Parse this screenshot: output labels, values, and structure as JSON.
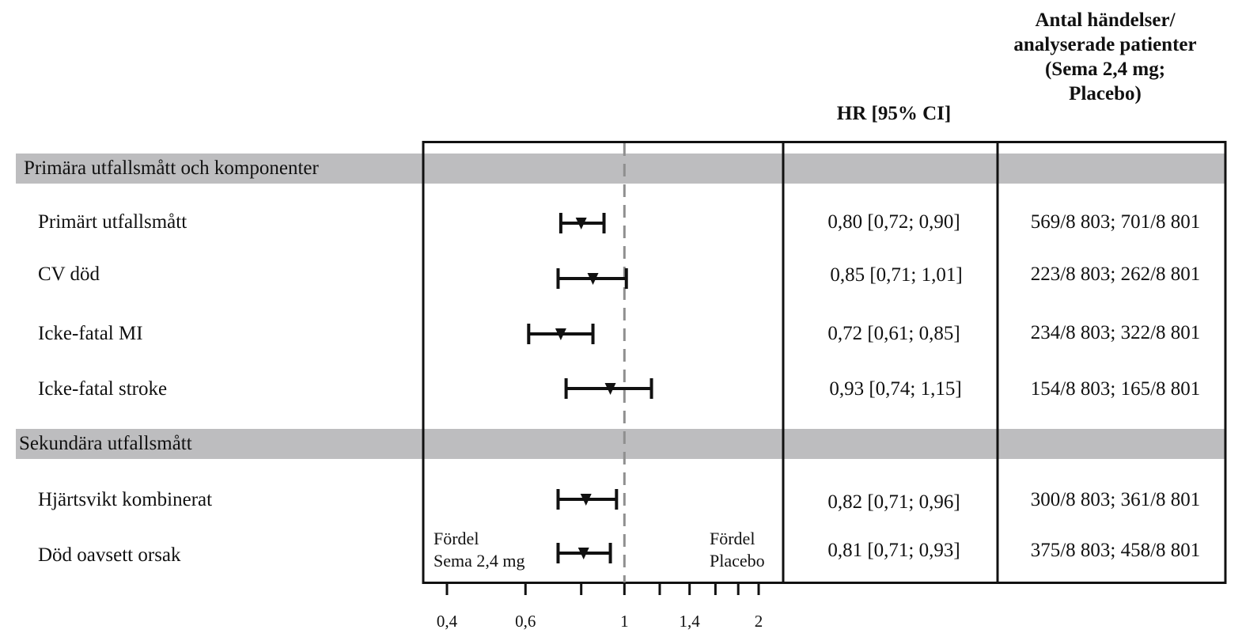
{
  "headers": {
    "hr_ci": "HR [95% CI]",
    "events_line1": "Antal händelser/",
    "events_line2": "analyserade patienter",
    "events_line3": "(Sema 2,4 mg;",
    "events_line4": "Placebo)"
  },
  "sections": [
    {
      "label": "Primära utfallsmått och komponenter"
    },
    {
      "label": "Sekundära utfallsmått"
    }
  ],
  "favor": {
    "left_line1": "Fördel",
    "left_line2": "Sema 2,4 mg",
    "right_line1": "Fördel",
    "right_line2": "Placebo"
  },
  "colors": {
    "band": "#bdbdbf",
    "ink": "#111111",
    "reference_line": "#8f8f8f"
  },
  "chart_data": {
    "type": "forest",
    "x_scale": "log",
    "xlim": [
      0.38,
      2.1
    ],
    "reference_value": 1,
    "ticks": [
      {
        "value": 0.4,
        "label": "0,4"
      },
      {
        "value": 0.6,
        "label": "0,6"
      },
      {
        "value": 0.8,
        "label": ""
      },
      {
        "value": 1,
        "label": "1"
      },
      {
        "value": 1.2,
        "label": ""
      },
      {
        "value": 1.4,
        "label": "1,4"
      },
      {
        "value": 1.6,
        "label": ""
      },
      {
        "value": 1.8,
        "label": ""
      },
      {
        "value": 2,
        "label": "2"
      }
    ],
    "rows": [
      {
        "label": "Primärt utfallsmått",
        "section": 0,
        "hr": 0.8,
        "lo": 0.72,
        "hi": 0.9,
        "hr_text": "0,80 [0,72; 0,90]",
        "events_text": "569/8 803; 701/8 801"
      },
      {
        "label": "CV död",
        "section": 0,
        "hr": 0.85,
        "lo": 0.71,
        "hi": 1.01,
        "hr_text": "0,85 [0,71; 1,01]",
        "events_text": "223/8 803; 262/8 801"
      },
      {
        "label": "Icke-fatal MI",
        "section": 0,
        "hr": 0.72,
        "lo": 0.61,
        "hi": 0.85,
        "hr_text": "0,72 [0,61; 0,85]",
        "events_text": "234/8 803; 322/8 801"
      },
      {
        "label": "Icke-fatal stroke",
        "section": 0,
        "hr": 0.93,
        "lo": 0.74,
        "hi": 1.15,
        "hr_text": "0,93 [0,74; 1,15]",
        "events_text": "154/8 803; 165/8 801"
      },
      {
        "label": "Hjärtsvikt kombinerat",
        "section": 1,
        "hr": 0.82,
        "lo": 0.71,
        "hi": 0.96,
        "hr_text": "0,82 [0,71; 0,96]",
        "events_text": "300/8 803; 361/8 801"
      },
      {
        "label": "Död oavsett orsak",
        "section": 1,
        "hr": 0.81,
        "lo": 0.71,
        "hi": 0.93,
        "hr_text": "0,81 [0,71; 0,93]",
        "events_text": "375/8 803; 458/8 801"
      }
    ]
  }
}
